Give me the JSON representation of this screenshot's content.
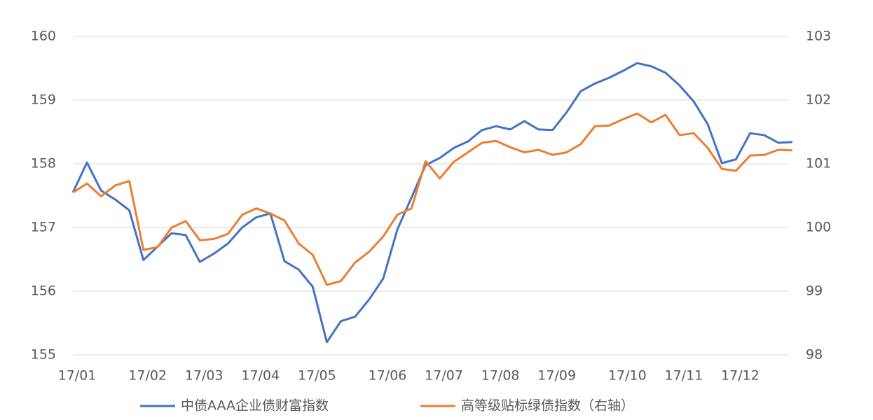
{
  "chart_data": {
    "type": "line",
    "categories": [
      "17/01",
      null,
      null,
      null,
      null,
      "17/02",
      null,
      null,
      null,
      "17/03",
      null,
      null,
      null,
      "17/04",
      null,
      null,
      null,
      "17/05",
      null,
      null,
      null,
      null,
      "17/06",
      null,
      null,
      null,
      "17/07",
      null,
      null,
      null,
      "17/08",
      null,
      null,
      null,
      "17/09",
      null,
      null,
      null,
      null,
      "17/10",
      null,
      null,
      null,
      "17/11",
      null,
      null,
      null,
      "17/12",
      null,
      null,
      null,
      null
    ],
    "series": [
      {
        "name": "中债AAA企业债财富指数",
        "color": "#4472c4",
        "axis": "y",
        "values": [
          157.55,
          158.02,
          157.58,
          157.44,
          157.27,
          156.49,
          156.7,
          156.91,
          156.88,
          156.46,
          156.59,
          156.75,
          157.0,
          157.16,
          157.22,
          156.47,
          156.34,
          156.07,
          155.2,
          155.53,
          155.6,
          155.87,
          156.2,
          156.97,
          157.47,
          157.98,
          158.09,
          158.25,
          158.35,
          158.53,
          158.59,
          158.54,
          158.67,
          158.54,
          158.53,
          158.81,
          159.14,
          159.26,
          159.35,
          159.46,
          159.58,
          159.53,
          159.43,
          159.23,
          158.98,
          158.62,
          158.01,
          158.07,
          158.48,
          158.45,
          158.33,
          158.34
        ]
      },
      {
        "name": "高等级贴标绿债指数（右轴）",
        "color": "#ed7d31",
        "axis": "y2",
        "values": [
          100.55,
          100.69,
          100.49,
          100.66,
          100.73,
          99.65,
          99.69,
          100.0,
          100.1,
          99.8,
          99.82,
          99.9,
          100.2,
          100.3,
          100.22,
          100.11,
          99.75,
          99.57,
          99.1,
          99.16,
          99.45,
          99.62,
          99.86,
          100.2,
          100.3,
          101.04,
          100.77,
          101.03,
          101.18,
          101.33,
          101.36,
          101.26,
          101.18,
          101.22,
          101.14,
          101.18,
          101.31,
          101.59,
          101.6,
          101.7,
          101.79,
          101.65,
          101.77,
          101.45,
          101.48,
          101.25,
          100.92,
          100.89,
          101.13,
          101.14,
          101.22,
          101.21
        ]
      }
    ],
    "ylim": [
      155,
      160
    ],
    "yticks": [
      155,
      156,
      157,
      158,
      159,
      160
    ],
    "y2lim": [
      98,
      103
    ],
    "y2ticks": [
      98,
      99,
      100,
      101,
      102,
      103
    ],
    "grid": true,
    "legend": "bottom"
  }
}
